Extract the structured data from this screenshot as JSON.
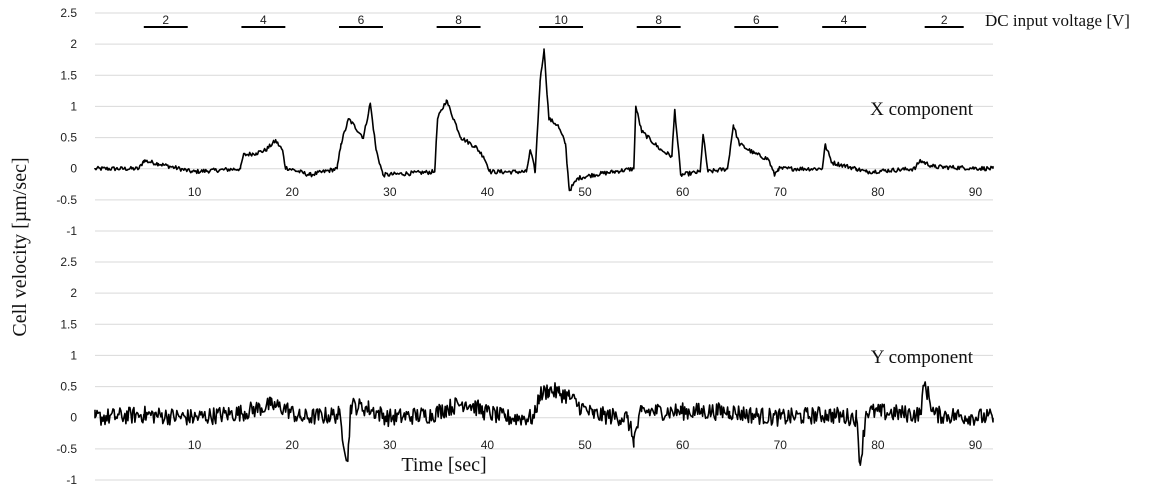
{
  "chart_data": [
    {
      "type": "line",
      "annotation": "X component",
      "ylim": [
        -1,
        2.5
      ],
      "yticks": [
        2.5,
        2,
        1.5,
        1,
        0.5,
        0,
        -0.5,
        -1
      ],
      "ytick_labels": [
        "2.5",
        "2",
        "1.5",
        "1",
        "0.5",
        "0",
        "-0.5",
        "-1"
      ],
      "xlim": [
        0,
        92
      ],
      "xticks": [
        10,
        20,
        30,
        40,
        50,
        60,
        70,
        80,
        90
      ],
      "xtick_labels": [
        "10",
        "20",
        "30",
        "40",
        "50",
        "60",
        "70",
        "80",
        "90"
      ],
      "grid": true,
      "x": [
        0,
        4.5,
        5.0,
        6.5,
        10,
        14.9,
        15.2,
        16.5,
        17.5,
        18.5,
        19.2,
        19.5,
        22,
        24.8,
        25.2,
        26,
        27.5,
        28.2,
        28.8,
        29.5,
        34.8,
        35.1,
        36,
        37.5,
        39,
        39.8,
        40.5,
        44.2,
        44.6,
        45.1,
        45.6,
        46,
        46.5,
        47.4,
        48.2,
        48.6,
        49.5,
        51,
        55.2,
        55.4,
        56,
        58,
        59.1,
        59.4,
        60,
        62,
        62.3,
        62.8,
        64.8,
        65.4,
        66,
        67.5,
        69,
        69.6,
        70,
        74.5,
        74.8,
        75.5,
        78,
        79,
        84,
        84.5,
        86,
        92
      ],
      "y": [
        0,
        0,
        0.13,
        0.08,
        -0.05,
        0,
        0.22,
        0.25,
        0.3,
        0.45,
        0.3,
        0.02,
        -0.1,
        0,
        0.4,
        0.8,
        0.5,
        1.05,
        0.3,
        -0.1,
        -0.05,
        0.8,
        1.1,
        0.5,
        0.35,
        0.2,
        -0.05,
        -0.05,
        0.3,
        -0.05,
        1.4,
        1.92,
        0.8,
        0.7,
        0.4,
        -0.35,
        -0.15,
        -0.1,
        0,
        1.0,
        0.6,
        0.3,
        0.2,
        0.95,
        -0.1,
        -0.05,
        0.55,
        -0.05,
        0,
        0.7,
        0.4,
        0.25,
        0.15,
        -0.1,
        0,
        0,
        0.38,
        0.1,
        0,
        -0.05,
        0,
        0.13,
        0.03,
        0
      ]
    },
    {
      "type": "line",
      "annotation": "Y component",
      "ylim": [
        -1,
        2.5
      ],
      "yticks": [
        2.5,
        2,
        1.5,
        1,
        0.5,
        0,
        -0.5,
        -1
      ],
      "ytick_labels": [
        "2.5",
        "2",
        "1.5",
        "1",
        "0.5",
        "0",
        "-0.5",
        "-1"
      ],
      "xlim": [
        0,
        92
      ],
      "xticks": [
        10,
        20,
        30,
        40,
        50,
        60,
        70,
        80,
        90
      ],
      "xtick_labels": [
        "10",
        "20",
        "30",
        "40",
        "50",
        "60",
        "70",
        "80",
        "90"
      ],
      "grid": true,
      "x": [
        0,
        5,
        10,
        15,
        18,
        19.5,
        21,
        25,
        25.9,
        26.2,
        28,
        30,
        34.5,
        36,
        38,
        39.8,
        42,
        45,
        45.5,
        46.5,
        47.5,
        48.5,
        49.5,
        51,
        54.5,
        55.2,
        56,
        60,
        65,
        67,
        70,
        75,
        78,
        78.4,
        79,
        84.5,
        85,
        86,
        92
      ],
      "y": [
        0,
        0.05,
        0,
        0.08,
        0.2,
        0.15,
        0,
        0.05,
        -0.7,
        0.2,
        0.15,
        0,
        0.05,
        0.15,
        0.25,
        0.1,
        0,
        0,
        0.35,
        0.45,
        0.4,
        0.35,
        0.2,
        0.05,
        0,
        -0.35,
        0.1,
        0.1,
        0.1,
        0.05,
        0,
        0.05,
        0,
        -0.75,
        0.1,
        0.05,
        0.55,
        0.05,
        0
      ]
    }
  ],
  "voltage_steps": {
    "label": "DC input voltage [V]",
    "steps": [
      {
        "value": "2",
        "start": 5,
        "end": 9.5
      },
      {
        "value": "4",
        "start": 15,
        "end": 19.5
      },
      {
        "value": "6",
        "start": 25,
        "end": 29.5
      },
      {
        "value": "8",
        "start": 35,
        "end": 39.5
      },
      {
        "value": "10",
        "start": 45.5,
        "end": 50
      },
      {
        "value": "8",
        "start": 55.5,
        "end": 60
      },
      {
        "value": "6",
        "start": 65.5,
        "end": 70
      },
      {
        "value": "4",
        "start": 74.5,
        "end": 79
      },
      {
        "value": "2",
        "start": 85,
        "end": 89
      }
    ]
  },
  "ylabel": "Cell velocity [µm/sec]",
  "xlabel": "Time [sec]"
}
